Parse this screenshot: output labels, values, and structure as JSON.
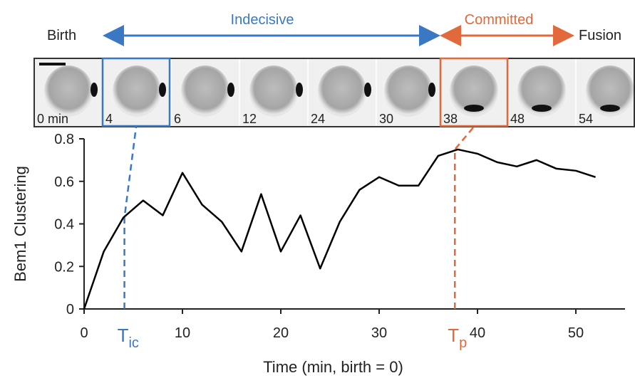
{
  "chart_data": {
    "type": "line",
    "xlabel": "Time (min, birth = 0)",
    "ylabel": "Bem1 Clustering",
    "x": [
      0,
      2,
      4,
      6,
      8,
      10,
      12,
      14,
      16,
      18,
      20,
      22,
      24,
      26,
      28,
      30,
      32,
      34,
      36,
      38,
      40,
      42,
      44,
      46,
      48,
      50,
      52
    ],
    "series": [
      {
        "color": "#000000",
        "values": [
          0,
          0.27,
          0.43,
          0.51,
          0.44,
          0.64,
          0.49,
          0.41,
          0.27,
          0.54,
          0.27,
          0.44,
          0.19,
          0.41,
          0.56,
          0.62,
          0.58,
          0.58,
          0.72,
          0.75,
          0.73,
          0.69,
          0.67,
          0.7,
          0.66,
          0.65,
          0.62
        ]
      }
    ],
    "xlim": [
      0,
      55
    ],
    "ylim": [
      0,
      0.8
    ],
    "xticks": [
      0,
      10,
      20,
      30,
      40,
      50
    ],
    "yticks": [
      0,
      0.2,
      0.4,
      0.6,
      0.8
    ],
    "annotations": [
      {
        "text": "T",
        "subscript": "ic",
        "x": 4.1,
        "y": 0.43,
        "color": "#3a78c3"
      },
      {
        "text": "T",
        "subscript": "p",
        "x": 37.7,
        "y": 0.75,
        "color": "#e2693b"
      }
    ]
  },
  "phases": {
    "birth": "Birth",
    "indecisive": "Indecisive",
    "committed": "Committed",
    "fusion": "Fusion"
  },
  "image_strip": {
    "frames": [
      "0 min",
      "4",
      "6",
      "12",
      "24",
      "30",
      "38",
      "48",
      "54"
    ]
  }
}
